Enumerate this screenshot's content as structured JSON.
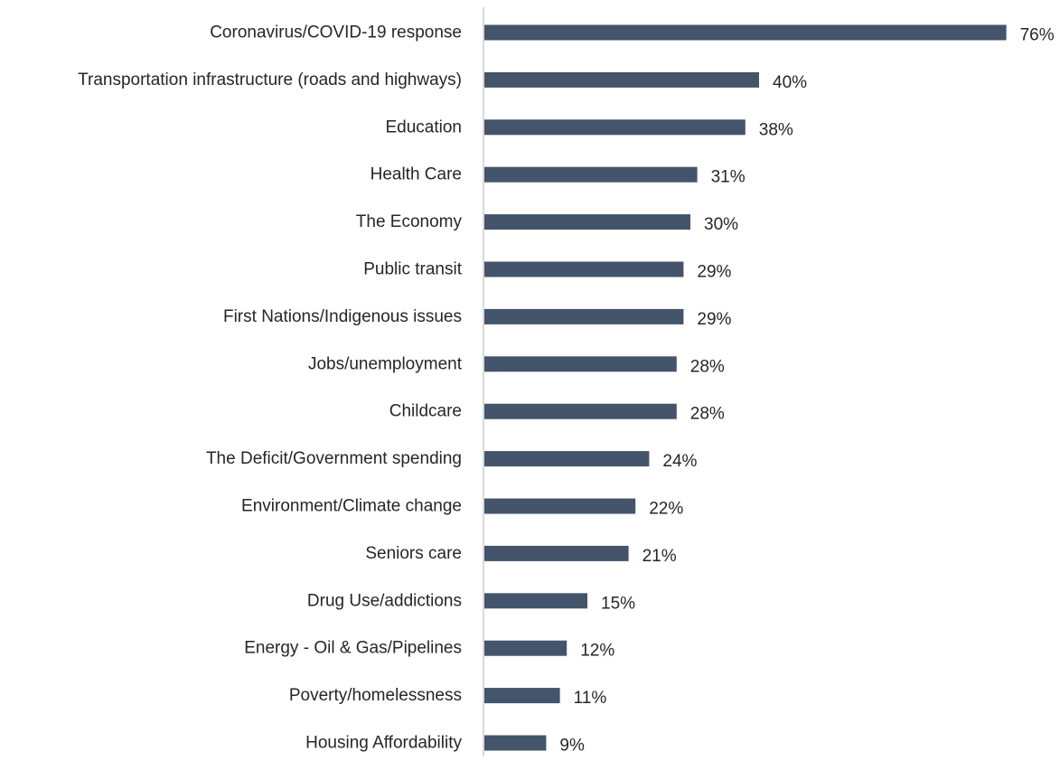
{
  "chart_data": {
    "type": "bar",
    "orientation": "horizontal",
    "categories": [
      "Coronavirus/COVID-19 response",
      "Transportation infrastructure (roads and highways)",
      "Education",
      "Health Care",
      "The Economy",
      "Public transit",
      "First Nations/Indigenous issues",
      "Jobs/unemployment",
      "Childcare",
      "The Deficit/Government spending",
      "Environment/Climate change",
      "Seniors care",
      "Drug Use/addictions",
      "Energy - Oil & Gas/Pipelines",
      "Poverty/homelessness",
      "Housing Affordability"
    ],
    "values": [
      76,
      40,
      38,
      31,
      30,
      29,
      29,
      28,
      28,
      24,
      22,
      21,
      15,
      12,
      11,
      9
    ],
    "data_labels": [
      "76%",
      "40%",
      "38%",
      "31%",
      "30%",
      "29%",
      "29%",
      "28%",
      "28%",
      "24%",
      "22%",
      "21%",
      "15%",
      "12%",
      "11%",
      "9%"
    ],
    "unit": "%",
    "xlim": [
      0,
      76
    ],
    "grid": false,
    "legend": "none",
    "bar_color": "#44546a",
    "axis_line_color": "#d9d9d9",
    "label_color": "#262626"
  }
}
